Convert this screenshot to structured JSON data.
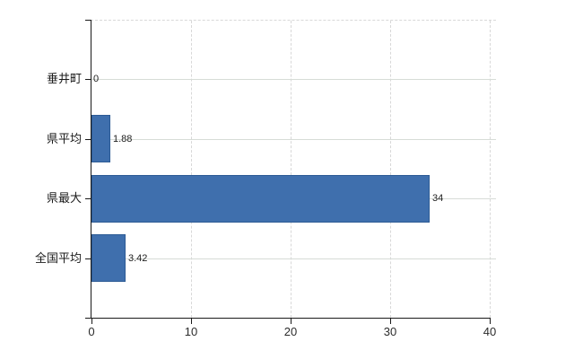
{
  "chart_data": {
    "type": "bar",
    "orientation": "horizontal",
    "title": "",
    "categories": [
      "垂井町",
      "県平均",
      "県最大",
      "全国平均"
    ],
    "values": [
      0,
      1.88,
      34,
      3.42
    ],
    "data_labels": [
      "0",
      "1.88",
      "34",
      "3.42"
    ],
    "xlim": [
      0,
      40
    ],
    "xticks": [
      0,
      10,
      20,
      30,
      40
    ],
    "xtick_labels": [
      "0",
      "10",
      "20",
      "30",
      "40"
    ],
    "grid": {
      "vertical": "dashed",
      "horizontal": "solid",
      "top_border": "dashed"
    },
    "legend": "none",
    "colors": {
      "bar_fill": "#3f6fad",
      "bar_border": "#2d5b95",
      "axis": "#1a1a1a",
      "grid_horizontal": "#d7dcd7",
      "grid_vertical": "#d8d8d8",
      "background": "#ffffff",
      "label_text": "#1e1e1e"
    }
  }
}
